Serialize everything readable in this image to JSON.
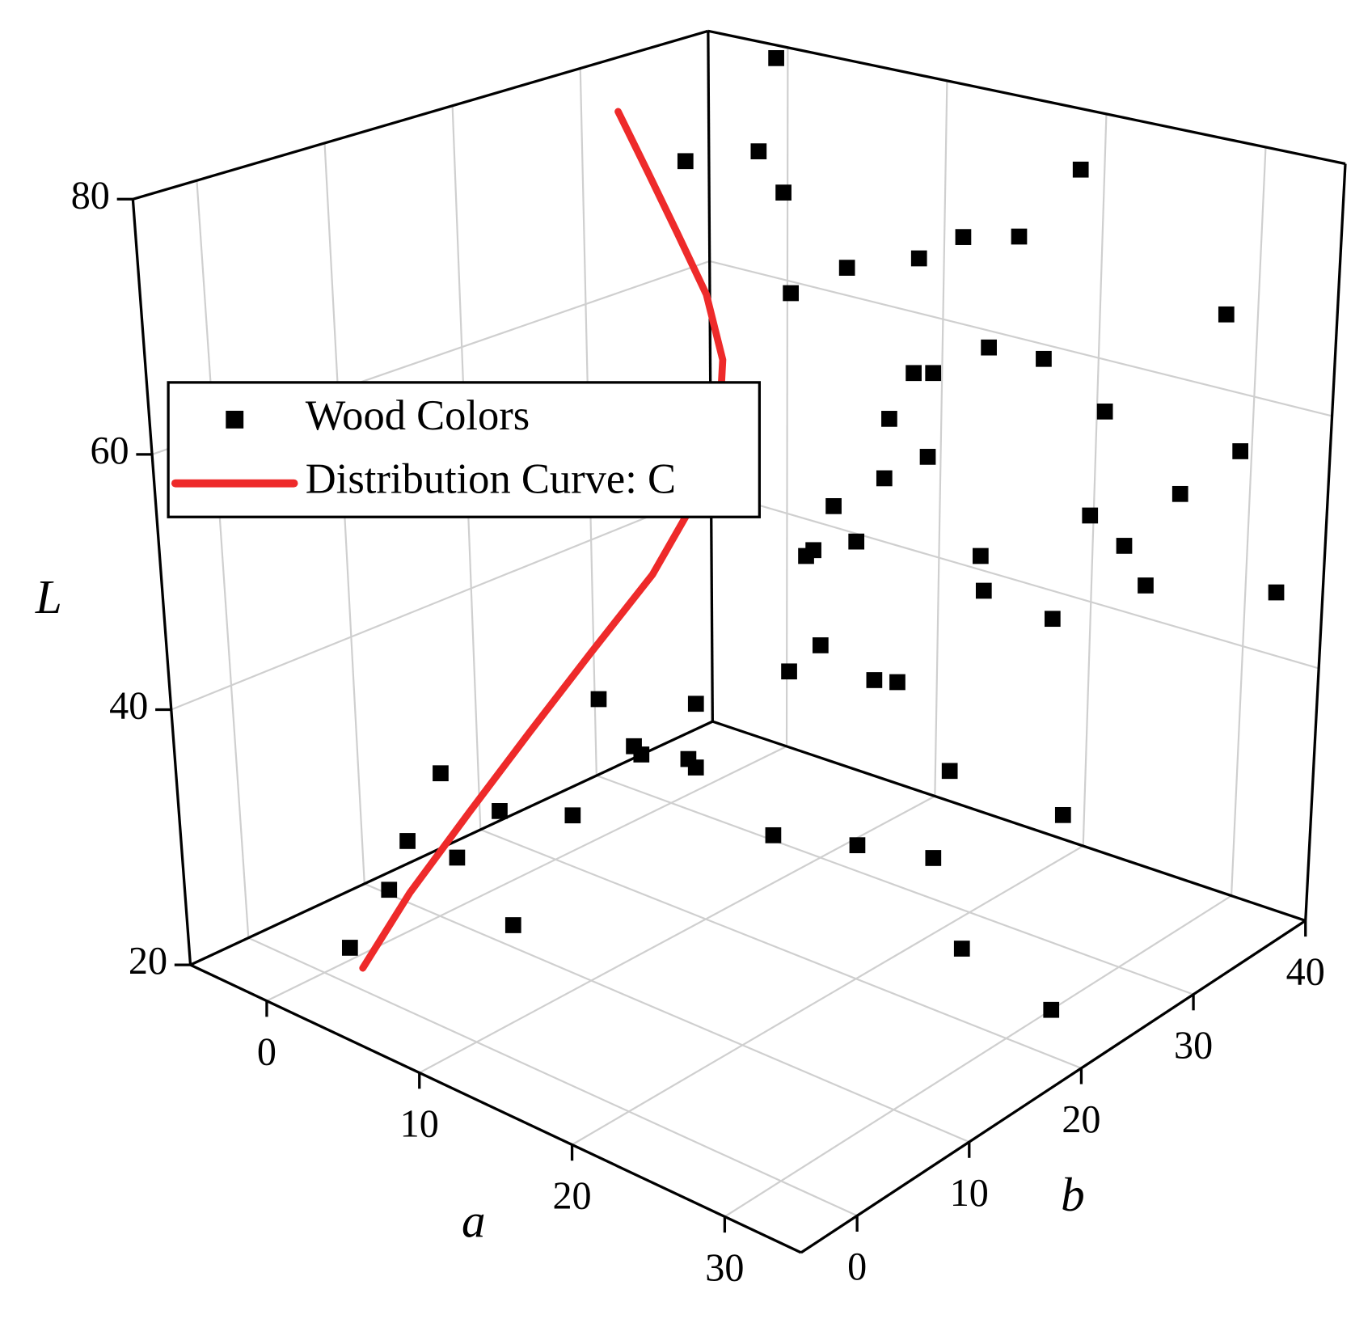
{
  "chart_data": {
    "type": "scatter3d",
    "xlabel": "a",
    "ylabel": "b",
    "zlabel": "L",
    "xlim": [
      -5,
      35
    ],
    "ylim": [
      -5,
      40
    ],
    "zlim": [
      20,
      80
    ],
    "xticks": [
      0,
      10,
      20,
      30
    ],
    "yticks": [
      0,
      10,
      20,
      30,
      40
    ],
    "zticks": [
      20,
      40,
      60,
      80
    ],
    "grid": true,
    "legend": "upper left",
    "series": [
      {
        "name": "Wood Colors",
        "type": "scatter",
        "color": "#000000",
        "x": [
          1,
          3,
          2,
          6,
          8,
          2,
          5,
          9,
          10,
          7,
          12,
          12,
          14,
          11,
          16,
          20,
          22,
          14,
          13,
          18,
          18,
          24,
          26,
          20,
          30,
          9,
          11,
          13,
          10,
          14,
          16,
          12,
          18,
          19,
          22,
          25,
          22,
          27,
          30,
          12,
          14,
          16,
          18,
          22,
          8,
          10,
          13,
          15,
          17,
          6,
          3,
          6,
          20,
          4,
          28,
          32,
          25
        ],
        "y": [
          1,
          2,
          5,
          4,
          6,
          8,
          9,
          10,
          14,
          15,
          12,
          16,
          14,
          18,
          18,
          20,
          24,
          22,
          26,
          24,
          26,
          24,
          30,
          28,
          24,
          30,
          28,
          29,
          31,
          30,
          31,
          33,
          33,
          32,
          34,
          36,
          37,
          38,
          39,
          35,
          34,
          36,
          38,
          38,
          30,
          32,
          34,
          35,
          37,
          32,
          28,
          30,
          38,
          34,
          40,
          40,
          38
        ],
        "z": [
          22,
          27,
          29,
          30,
          25,
          33,
          31,
          32,
          36,
          38,
          37,
          35,
          36,
          38,
          30,
          30,
          28,
          40,
          40,
          40,
          39,
          22,
          30,
          32,
          20,
          44,
          46,
          47,
          48,
          52,
          54,
          55,
          46,
          44,
          42,
          48,
          49,
          52,
          56,
          58,
          59,
          61,
          60,
          57,
          65,
          67,
          68,
          70,
          70,
          72,
          75,
          76,
          76,
          82,
          66,
          45,
          44
        ]
      },
      {
        "name": "Distribution Curve: C",
        "type": "line",
        "color": "#ee2a2a",
        "x": [
          1,
          2,
          3,
          4,
          5,
          6,
          6.5,
          6.5,
          6,
          5,
          4,
          3,
          2
        ],
        "y": [
          2,
          5,
          9,
          13,
          17,
          21,
          24,
          26,
          27,
          27,
          26,
          25,
          24
        ],
        "z": [
          20,
          25,
          30,
          35,
          40,
          45,
          50,
          55,
          60,
          65,
          70,
          75,
          80
        ]
      }
    ]
  }
}
